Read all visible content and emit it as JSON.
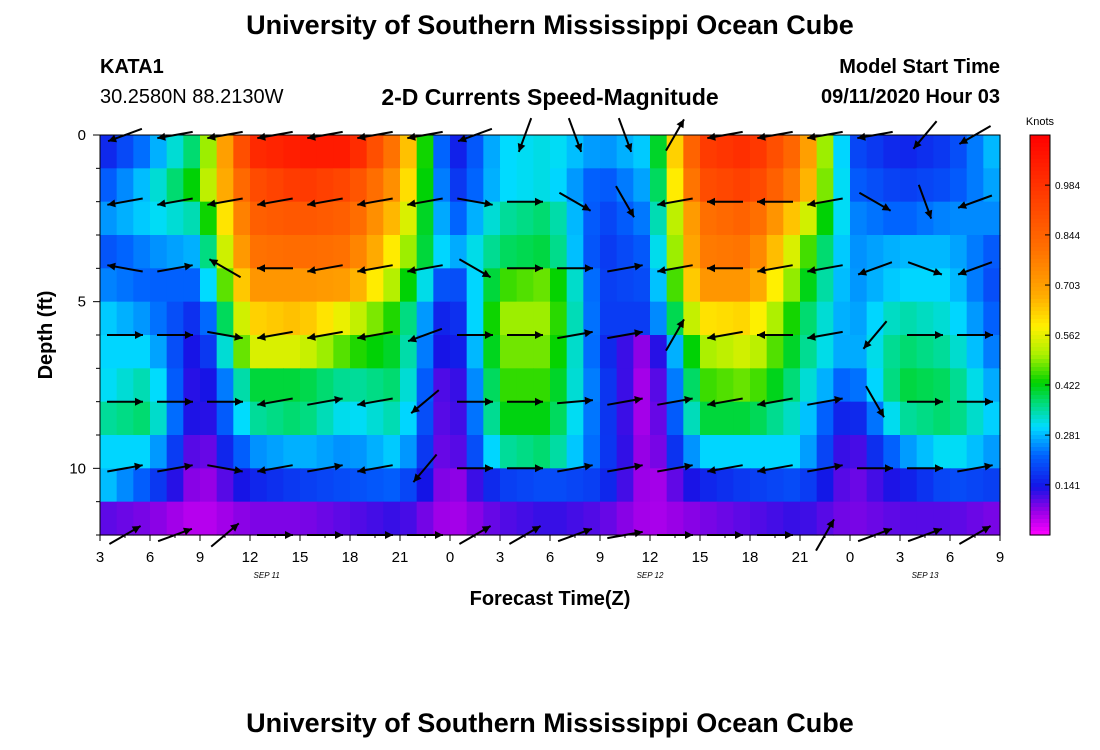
{
  "header": {
    "title": "University of Southern Mississippi Ocean Cube",
    "station_id": "KATA1",
    "station_coords": "30.2580N 88.2130W",
    "model_label": "Model Start Time",
    "model_time": "09/11/2020 Hour 03"
  },
  "footer": {
    "title": "University of Southern Mississippi Ocean Cube"
  },
  "chart_data": {
    "type": "heatmap",
    "title": "2-D Currents Speed-Magnitude",
    "xlabel": "Forecast Time(Z)",
    "ylabel": "Depth (ft)",
    "x_hours_range": [
      0,
      54
    ],
    "x_tick_labels": [
      "3",
      "6",
      "9",
      "12",
      "15",
      "18",
      "21",
      "0",
      "3",
      "6",
      "9",
      "12",
      "15",
      "18",
      "21",
      "0",
      "3",
      "6",
      "9"
    ],
    "date_labels": [
      {
        "label": "SEP 11",
        "hour": 10
      },
      {
        "label": "SEP 12",
        "hour": 33
      },
      {
        "label": "SEP 13",
        "hour": 49.5
      }
    ],
    "ylim": [
      0,
      12
    ],
    "y_tick_labels": [
      "0",
      "5",
      "10"
    ],
    "colorbar": {
      "unit": "Knots",
      "range": [
        0,
        1.125
      ],
      "tick_labels": [
        "0.984",
        "0.844",
        "0.703",
        "0.562",
        "0.422",
        "0.281",
        "0.141"
      ],
      "tick_values": [
        0.984,
        0.844,
        0.703,
        0.562,
        0.422,
        0.281,
        0.141
      ]
    },
    "depth_profiles": {
      "depths_ft": [
        0.5,
        1.5,
        2.5,
        3.5,
        4.5,
        5.5,
        6.5,
        7.5,
        8.5,
        9.5,
        10.5,
        11.5
      ],
      "time_hours": [
        0,
        3,
        6,
        9,
        12,
        15,
        18,
        21,
        24,
        27,
        30,
        33,
        36,
        39,
        42,
        45,
        48,
        51,
        54
      ],
      "speed_knots": [
        [
          0.14,
          0.25,
          0.4,
          1.0,
          1.05,
          1.05,
          0.75,
          0.12,
          0.3,
          0.32,
          0.25,
          0.3,
          0.95,
          1.0,
          0.8,
          0.2,
          0.15,
          0.18,
          0.3
        ],
        [
          0.2,
          0.3,
          0.45,
          0.9,
          0.97,
          0.92,
          0.7,
          0.15,
          0.3,
          0.32,
          0.2,
          0.28,
          0.9,
          0.95,
          0.75,
          0.22,
          0.18,
          0.2,
          0.28
        ],
        [
          0.25,
          0.3,
          0.35,
          0.85,
          0.88,
          0.85,
          0.62,
          0.2,
          0.35,
          0.38,
          0.18,
          0.25,
          0.8,
          0.85,
          0.6,
          0.25,
          0.22,
          0.25,
          0.25
        ],
        [
          0.2,
          0.25,
          0.28,
          0.8,
          0.82,
          0.8,
          0.55,
          0.25,
          0.38,
          0.4,
          0.17,
          0.22,
          0.78,
          0.8,
          0.5,
          0.25,
          0.28,
          0.28,
          0.2
        ],
        [
          0.25,
          0.22,
          0.22,
          0.72,
          0.72,
          0.7,
          0.48,
          0.15,
          0.45,
          0.48,
          0.18,
          0.2,
          0.72,
          0.72,
          0.45,
          0.25,
          0.3,
          0.3,
          0.18
        ],
        [
          0.3,
          0.25,
          0.15,
          0.62,
          0.65,
          0.55,
          0.42,
          0.1,
          0.5,
          0.5,
          0.18,
          0.18,
          0.6,
          0.62,
          0.4,
          0.25,
          0.35,
          0.32,
          0.2
        ],
        [
          0.3,
          0.3,
          0.1,
          0.55,
          0.55,
          0.45,
          0.4,
          0.08,
          0.48,
          0.48,
          0.18,
          0.05,
          0.5,
          0.55,
          0.38,
          0.25,
          0.38,
          0.35,
          0.22
        ],
        [
          0.3,
          0.35,
          0.08,
          0.4,
          0.4,
          0.35,
          0.38,
          0.05,
          0.45,
          0.45,
          0.2,
          0.03,
          0.45,
          0.48,
          0.35,
          0.2,
          0.4,
          0.38,
          0.25
        ],
        [
          0.35,
          0.38,
          0.08,
          0.35,
          0.38,
          0.3,
          0.35,
          0.05,
          0.42,
          0.42,
          0.2,
          0.03,
          0.4,
          0.4,
          0.32,
          0.12,
          0.35,
          0.38,
          0.28
        ],
        [
          0.3,
          0.3,
          0.06,
          0.25,
          0.28,
          0.25,
          0.3,
          0.05,
          0.35,
          0.38,
          0.2,
          0.04,
          0.3,
          0.3,
          0.3,
          0.08,
          0.25,
          0.32,
          0.25
        ],
        [
          0.3,
          0.2,
          0.05,
          0.15,
          0.18,
          0.2,
          0.22,
          0.05,
          0.18,
          0.2,
          0.18,
          0.04,
          0.15,
          0.18,
          0.2,
          0.08,
          0.14,
          0.2,
          0.18
        ],
        [
          0.1,
          0.08,
          0.04,
          0.08,
          0.08,
          0.1,
          0.12,
          0.05,
          0.1,
          0.12,
          0.1,
          0.05,
          0.08,
          0.1,
          0.12,
          0.08,
          0.1,
          0.1,
          0.08
        ]
      ]
    },
    "vector_depths_ft": [
      0,
      2,
      4,
      6,
      8,
      10,
      12
    ],
    "vector_times_hours": [
      1.5,
      4.5,
      7.5,
      10.5,
      13.5,
      16.5,
      19.5,
      22.5,
      25.5,
      28.5,
      31.5,
      34.5,
      37.5,
      40.5,
      43.5,
      46.5,
      49.5,
      52.5
    ],
    "vector_directions_deg": [
      [
        200,
        190,
        190,
        190,
        190,
        190,
        190,
        200,
        250,
        290,
        290,
        60,
        190,
        190,
        190,
        190,
        230,
        210
      ],
      [
        190,
        190,
        190,
        190,
        190,
        190,
        190,
        350,
        0,
        330,
        300,
        190,
        180,
        180,
        190,
        330,
        290,
        200
      ],
      [
        170,
        10,
        150,
        180,
        190,
        190,
        190,
        330,
        0,
        0,
        10,
        190,
        180,
        190,
        190,
        200,
        340,
        200
      ],
      [
        0,
        0,
        350,
        190,
        190,
        190,
        200,
        0,
        0,
        10,
        10,
        60,
        190,
        180,
        190,
        230,
        0,
        0
      ],
      [
        0,
        0,
        0,
        190,
        10,
        190,
        220,
        0,
        0,
        5,
        10,
        10,
        190,
        190,
        10,
        300,
        0,
        0
      ],
      [
        10,
        10,
        350,
        190,
        10,
        190,
        230,
        0,
        0,
        10,
        10,
        10,
        190,
        190,
        10,
        0,
        0,
        10
      ],
      [
        30,
        20,
        40,
        0,
        0,
        0,
        0,
        30,
        30,
        20,
        10,
        0,
        0,
        0,
        60,
        20,
        20,
        30
      ]
    ]
  }
}
